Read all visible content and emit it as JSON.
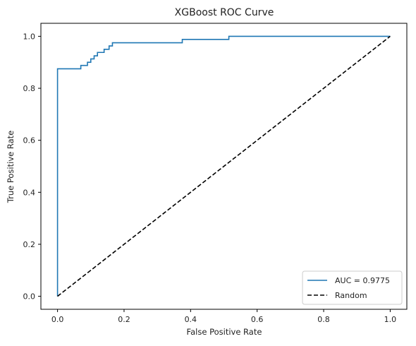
{
  "chart_data": {
    "type": "line",
    "title": "XGBoost ROC Curve",
    "xlabel": "False Positive Rate",
    "ylabel": "True Positive Rate",
    "xlim": [
      -0.05,
      1.05
    ],
    "ylim": [
      -0.05,
      1.05
    ],
    "xticks": [
      "0.0",
      "0.2",
      "0.4",
      "0.6",
      "0.8",
      "1.0"
    ],
    "yticks": [
      "0.0",
      "0.2",
      "0.4",
      "0.6",
      "0.8",
      "1.0"
    ],
    "grid": false,
    "legend_position": "lower-right",
    "series": [
      {
        "name": "AUC = 0.9775",
        "color": "#1f77b4",
        "style": "solid",
        "x": [
          0.0,
          0.0,
          0.07,
          0.07,
          0.09,
          0.09,
          0.1,
          0.1,
          0.11,
          0.11,
          0.12,
          0.12,
          0.14,
          0.14,
          0.155,
          0.155,
          0.165,
          0.165,
          0.375,
          0.375,
          0.515,
          0.515,
          1.0
        ],
        "y": [
          0.0,
          0.875,
          0.875,
          0.888,
          0.888,
          0.9,
          0.9,
          0.913,
          0.913,
          0.925,
          0.925,
          0.938,
          0.938,
          0.95,
          0.95,
          0.963,
          0.963,
          0.975,
          0.975,
          0.988,
          0.988,
          1.0,
          1.0
        ]
      },
      {
        "name": "Random",
        "color": "#000000",
        "style": "dashed",
        "x": [
          0.0,
          1.0
        ],
        "y": [
          0.0,
          1.0
        ]
      }
    ]
  }
}
